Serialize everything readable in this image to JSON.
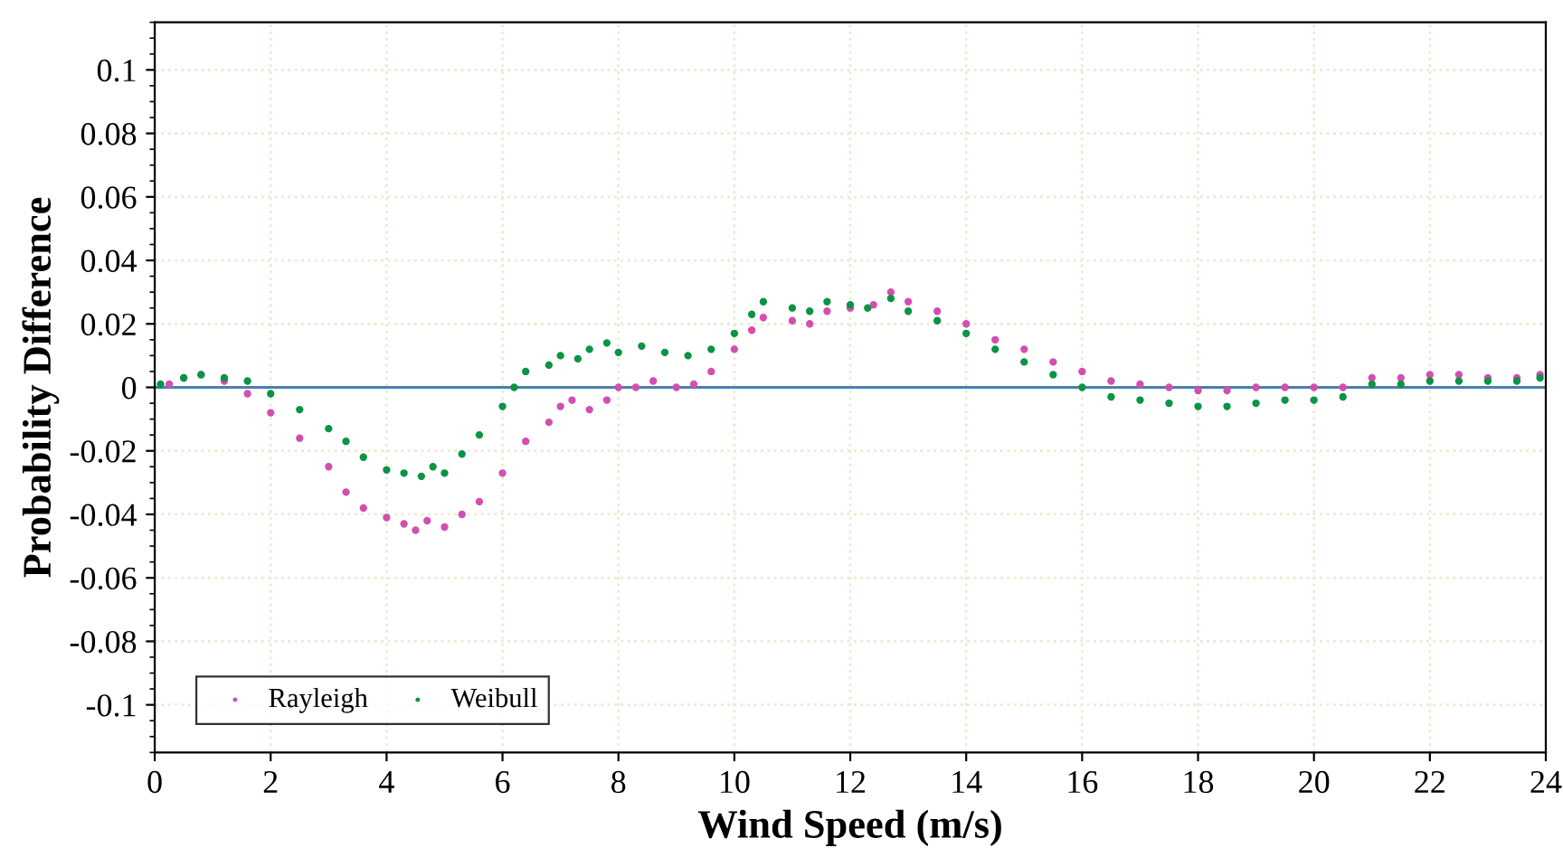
{
  "chart_data": {
    "type": "scatter",
    "xlabel": "Wind Speed (m/s)",
    "ylabel": "Probability Difference",
    "xlim": [
      0,
      24
    ],
    "ylim": [
      -0.115,
      0.115
    ],
    "xticks": [
      0,
      2,
      4,
      6,
      8,
      10,
      12,
      14,
      16,
      18,
      20,
      22,
      24
    ],
    "yticks": [
      -0.1,
      -0.08,
      -0.06,
      -0.04,
      -0.02,
      0,
      0.02,
      0.04,
      0.06,
      0.08,
      0.1
    ],
    "grid": true,
    "legend": "bottom left",
    "marker": "circle",
    "ref_lines": [
      {
        "axis": "y",
        "value": 0,
        "color": "#4a7fb0"
      }
    ],
    "series": [
      {
        "name": "Rayleigh",
        "color": "#d24fb0",
        "x": [
          0.25,
          0.5,
          0.8,
          1.2,
          1.6,
          2.0,
          2.5,
          3.0,
          3.3,
          3.6,
          4.0,
          4.3,
          4.5,
          4.7,
          5.0,
          5.3,
          5.6,
          6.0,
          6.4,
          6.8,
          7.0,
          7.2,
          7.5,
          7.8,
          8.0,
          8.3,
          8.6,
          9.0,
          9.3,
          9.6,
          10.0,
          10.3,
          10.5,
          11.0,
          11.3,
          11.6,
          12.0,
          12.4,
          12.7,
          13.0,
          13.5,
          14.0,
          14.5,
          15.0,
          15.5,
          16.0,
          16.5,
          17.0,
          17.5,
          18.0,
          18.5,
          19.0,
          19.5,
          20.0,
          20.5,
          21.0,
          21.5,
          22.0,
          22.5,
          23.0,
          23.5,
          23.9
        ],
        "values": [
          0.001,
          0.003,
          0.004,
          0.002,
          -0.002,
          -0.008,
          -0.016,
          -0.025,
          -0.033,
          -0.038,
          -0.041,
          -0.043,
          -0.045,
          -0.042,
          -0.044,
          -0.04,
          -0.036,
          -0.027,
          -0.017,
          -0.011,
          -0.006,
          -0.004,
          -0.007,
          -0.004,
          0.0,
          0.0,
          0.002,
          0.0,
          0.001,
          0.005,
          0.012,
          0.018,
          0.022,
          0.021,
          0.02,
          0.024,
          0.025,
          0.026,
          0.03,
          0.027,
          0.024,
          0.02,
          0.015,
          0.012,
          0.008,
          0.005,
          0.002,
          0.001,
          0.0,
          -0.001,
          -0.001,
          0.0,
          0.0,
          0.0,
          0.0,
          0.003,
          0.003,
          0.004,
          0.004,
          0.003,
          0.003,
          0.004
        ]
      },
      {
        "name": "Weibull",
        "color": "#0a9444",
        "x": [
          0.1,
          0.5,
          0.8,
          1.2,
          1.6,
          2.0,
          2.5,
          3.0,
          3.3,
          3.6,
          4.0,
          4.3,
          4.6,
          4.8,
          5.0,
          5.3,
          5.6,
          6.0,
          6.2,
          6.4,
          6.8,
          7.0,
          7.3,
          7.5,
          7.8,
          8.0,
          8.4,
          8.8,
          9.2,
          9.6,
          10.0,
          10.3,
          10.5,
          11.0,
          11.3,
          11.6,
          12.0,
          12.3,
          12.7,
          13.0,
          13.5,
          14.0,
          14.5,
          15.0,
          15.5,
          16.0,
          16.5,
          17.0,
          17.5,
          18.0,
          18.5,
          19.0,
          19.5,
          20.0,
          20.5,
          21.0,
          21.5,
          22.0,
          22.5,
          23.0,
          23.5,
          23.9
        ],
        "values": [
          0.001,
          0.003,
          0.004,
          0.003,
          0.002,
          -0.002,
          -0.007,
          -0.013,
          -0.017,
          -0.022,
          -0.026,
          -0.027,
          -0.028,
          -0.025,
          -0.027,
          -0.021,
          -0.015,
          -0.006,
          0.0,
          0.005,
          0.007,
          0.01,
          0.009,
          0.012,
          0.014,
          0.011,
          0.013,
          0.011,
          0.01,
          0.012,
          0.017,
          0.023,
          0.027,
          0.025,
          0.024,
          0.027,
          0.026,
          0.025,
          0.028,
          0.024,
          0.021,
          0.017,
          0.012,
          0.008,
          0.004,
          0.0,
          -0.003,
          -0.004,
          -0.005,
          -0.006,
          -0.006,
          -0.005,
          -0.004,
          -0.004,
          -0.003,
          0.001,
          0.001,
          0.002,
          0.002,
          0.002,
          0.002,
          0.003
        ]
      }
    ]
  }
}
